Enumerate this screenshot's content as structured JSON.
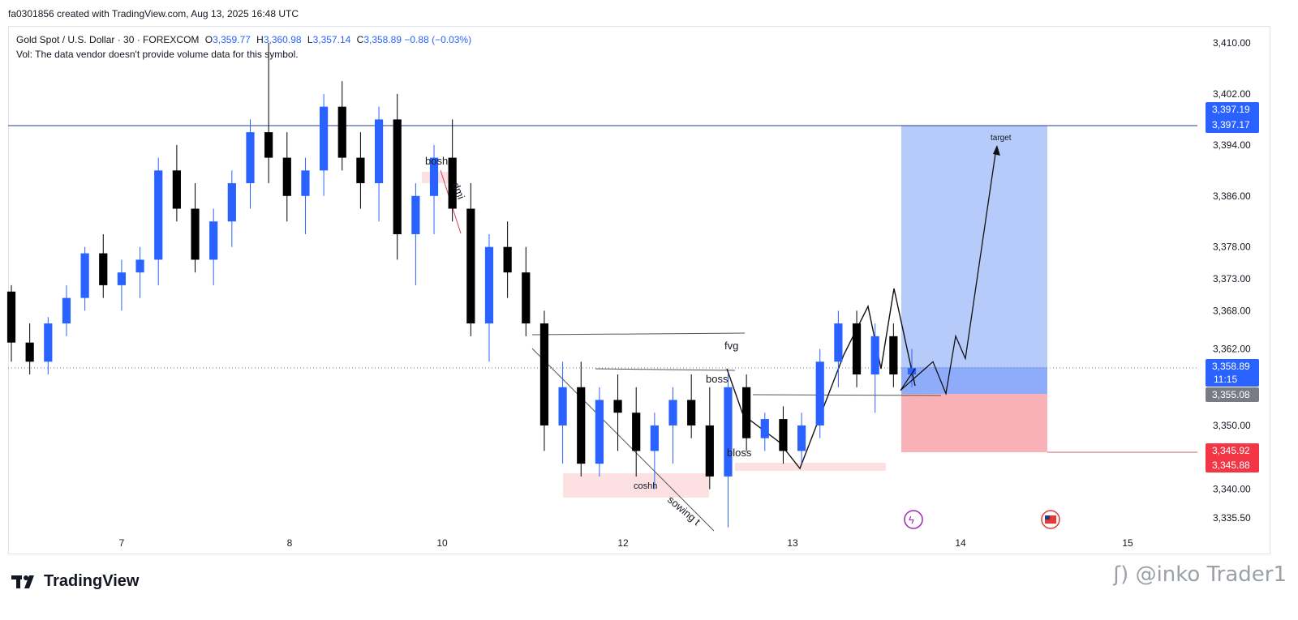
{
  "header": {
    "created_text": "fa0301856 created with TradingView.com, Aug 13, 2025 16:48 UTC"
  },
  "legend": {
    "symbol_line": "Gold Spot / U.S. Dollar · 30 · FOREXCOM",
    "open_label": "O",
    "open": "3,359.77",
    "high_label": "H",
    "high": "3,360.98",
    "low_label": "L",
    "low": "3,357.14",
    "close_label": "C",
    "close": "3,358.89",
    "change": "−0.88 (−0.03%)",
    "vol_text": "Vol: The data vendor doesn't provide volume data for this symbol."
  },
  "footer": {
    "brand": "TradingView",
    "watermark": "@inko Trader1",
    "watermark_prefix": "ʃ)"
  },
  "colors": {
    "up": "#2962ff",
    "down": "#000000",
    "tp_zone": "#b3c8fb",
    "sl_zone": "#f8aeb3",
    "demand": "#fde0e2"
  },
  "price_badges": {
    "tp_top": "3,397.19",
    "tp_bottom": "3,397.17",
    "last_price": "3,358.89",
    "countdown": "11:15",
    "entry": "3,355.08",
    "sl_top": "3,345.92",
    "sl_bottom": "3,345.88"
  },
  "annotations": {
    "target": "target",
    "bosh": "bosh",
    "dmi": "dmi",
    "fvg": "fvg",
    "boss": "boss",
    "bloss": "bloss",
    "coshh": "coshh",
    "sowing": "sowing t"
  },
  "chart_data": {
    "type": "candlestick",
    "title": "Gold Spot / U.S. Dollar · 30 · FOREXCOM",
    "ylabel": "",
    "ylim": [
      3333.0,
      3413.0
    ],
    "y_ticks": [
      "3,410.00",
      "3,402.00",
      "3,394.00",
      "3,386.00",
      "3,378.00",
      "3,373.00",
      "3,368.00",
      "3,362.00",
      "3,350.00",
      "3,340.00",
      "3,335.50"
    ],
    "x_ticks": [
      "7",
      "8",
      "10",
      "12",
      "13",
      "14",
      "15"
    ],
    "grid": false,
    "levels": {
      "resistance": 3397.18,
      "last": 3358.89,
      "entry": 3355.08,
      "stop": 3345.9
    },
    "candles_ohlc_approx": [
      [
        3371,
        3372,
        3360,
        3363
      ],
      [
        3363,
        3366,
        3358,
        3360
      ],
      [
        3360,
        3367,
        3358,
        3366
      ],
      [
        3366,
        3372,
        3364,
        3370
      ],
      [
        3370,
        3378,
        3368,
        3377
      ],
      [
        3377,
        3380,
        3370,
        3372
      ],
      [
        3372,
        3376,
        3368,
        3374
      ],
      [
        3374,
        3378,
        3370,
        3376
      ],
      [
        3376,
        3392,
        3372,
        3390
      ],
      [
        3390,
        3394,
        3382,
        3384
      ],
      [
        3384,
        3388,
        3374,
        3376
      ],
      [
        3376,
        3384,
        3372,
        3382
      ],
      [
        3382,
        3390,
        3378,
        3388
      ],
      [
        3388,
        3398,
        3384,
        3396
      ],
      [
        3396,
        3410,
        3388,
        3392
      ],
      [
        3392,
        3396,
        3382,
        3386
      ],
      [
        3386,
        3392,
        3380,
        3390
      ],
      [
        3390,
        3402,
        3386,
        3400
      ],
      [
        3400,
        3404,
        3390,
        3392
      ],
      [
        3392,
        3396,
        3384,
        3388
      ],
      [
        3388,
        3400,
        3382,
        3398
      ],
      [
        3398,
        3402,
        3376,
        3380
      ],
      [
        3380,
        3388,
        3372,
        3386
      ],
      [
        3386,
        3394,
        3380,
        3392
      ],
      [
        3392,
        3398,
        3382,
        3384
      ],
      [
        3384,
        3388,
        3364,
        3366
      ],
      [
        3366,
        3380,
        3360,
        3378
      ],
      [
        3378,
        3382,
        3370,
        3374
      ],
      [
        3374,
        3378,
        3364,
        3366
      ],
      [
        3366,
        3368,
        3346,
        3350
      ],
      [
        3350,
        3360,
        3344,
        3356
      ],
      [
        3356,
        3360,
        3342,
        3344
      ],
      [
        3344,
        3356,
        3342,
        3354
      ],
      [
        3354,
        3358,
        3346,
        3352
      ],
      [
        3352,
        3356,
        3342,
        3346
      ],
      [
        3346,
        3352,
        3340,
        3350
      ],
      [
        3350,
        3356,
        3344,
        3354
      ],
      [
        3354,
        3358,
        3348,
        3350
      ],
      [
        3350,
        3356,
        3340,
        3342
      ],
      [
        3342,
        3358,
        3334,
        3356
      ],
      [
        3356,
        3358,
        3346,
        3348
      ],
      [
        3348,
        3352,
        3346,
        3351
      ],
      [
        3351,
        3353,
        3344,
        3346
      ],
      [
        3346,
        3352,
        3344,
        3350
      ],
      [
        3350,
        3362,
        3348,
        3360
      ],
      [
        3360,
        3368,
        3356,
        3366
      ],
      [
        3366,
        3368,
        3356,
        3358
      ],
      [
        3358,
        3366,
        3352,
        3364
      ],
      [
        3364,
        3366,
        3356,
        3358
      ],
      [
        3358,
        3362,
        3356,
        3359
      ]
    ],
    "projection_path_prices": [
      3358.9,
      3355.5,
      3360.0,
      3355.0,
      3364.0,
      3360.5,
      3393.5
    ],
    "series": [
      {
        "name": "Gold Spot / U.S. Dollar",
        "values": []
      }
    ]
  }
}
